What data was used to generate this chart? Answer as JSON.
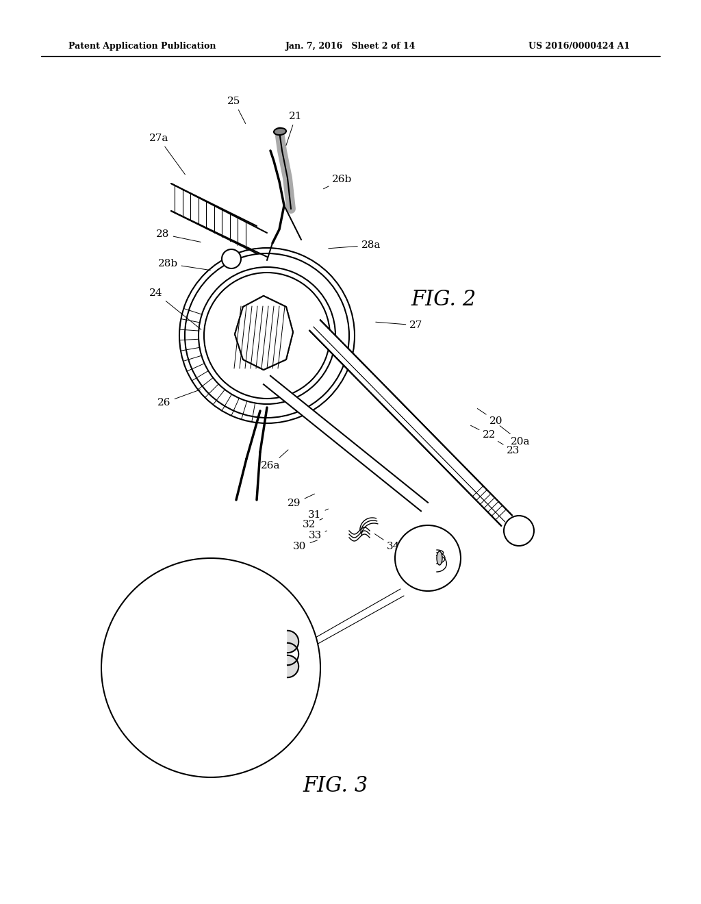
{
  "bg_color": "#ffffff",
  "line_color": "#000000",
  "header_left": "Patent Application Publication",
  "header_center": "Jan. 7, 2016   Sheet 2 of 14",
  "header_right": "US 2016/0000424 A1",
  "fig2_label": "FIG. 2",
  "fig3_label": "FIG. 3"
}
